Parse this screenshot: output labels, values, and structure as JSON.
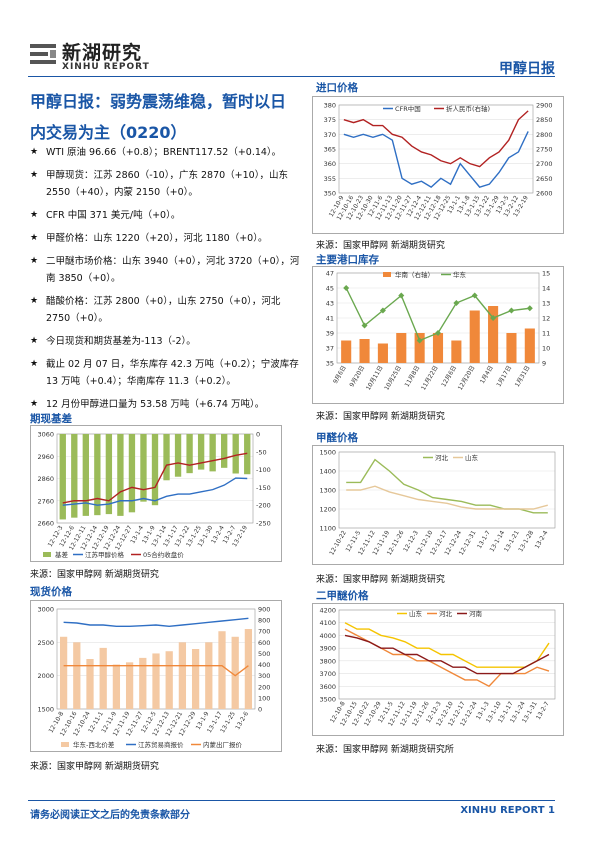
{
  "header": {
    "logo_cn": "新湖研究",
    "logo_en": "XINHU REPORT",
    "report_name": "甲醇日报"
  },
  "title": "甲醇日报：弱势震荡维稳，暂时以日内交易为主（0220）",
  "bullets": [
    "WTI 原油 96.66（+0.8）；BRENT117.52（+0.14）。",
    "甲醇现货：江苏 2860（-10），广东 2870（+10），山东 2550（+40），内蒙 2150（+0）。",
    "CFR 中国 371 美元/吨（+0）。",
    "甲醛价格：山东 1220（+20），河北 1180（+0）。",
    "二甲醚市场价格：山东 3940（+0），河北 3720（+0），河南 3850（+0）。",
    "醋酸价格：江苏 2800（+0），山东 2750（+0），河北 2750（+0）。",
    "今日现货和期货基差为-113（-2）。",
    "截止 02 月 07 日，华东库存 42.3 万吨（+0.2）；宁波库存 13 万吨（+0.4）；华南库存 11.3（+0.2）。",
    "12 月份甲醇进口量为 53.58 万吨（+6.74 万吨）。"
  ],
  "sections": {
    "import_price": "进口价格",
    "port_inventory": "主要港口库存",
    "basis": "期现基差",
    "formaldehyde": "甲醛价格",
    "spot": "现货价格",
    "dme": "二甲醚价格"
  },
  "sources": {
    "s1": "来源：国家甲醇网  新湖期货研究",
    "s2": "来源：国家甲醇网  新湖期货研究",
    "s3": "来源：国家甲醇网  新湖期货研究",
    "s4": "来源：国家甲醇网  新湖期货研究",
    "s5": "来源：国家甲醇网  新湖期货研究",
    "s6": "来源：国家甲醇网  新湖期货研究所"
  },
  "footer": {
    "disclaimer": "请务必阅读正文之后的免责条款部分",
    "brand": "XINHU REPORT",
    "page": "1"
  },
  "colors": {
    "brand_blue": "#1a56a6",
    "series_blue": "#2f6fc4",
    "series_red": "#b22222",
    "series_orange": "#f0883a",
    "series_green": "#6aa84f",
    "series_lightgreen": "#9bbb59",
    "series_yellow": "#f5c400",
    "series_darkred": "#8b1a1a"
  },
  "chart_data": [
    {
      "id": "import",
      "type": "line",
      "x": [
        "12-10-9",
        "12-10-16",
        "12-10-23",
        "12-10-30",
        "12-11-6",
        "12-11-13",
        "12-11-20",
        "12-11-27",
        "12-12-4",
        "12-12-11",
        "12-12-18",
        "12-12-25",
        "13-1-1",
        "13-1-8",
        "13-1-15",
        "13-1-22",
        "13-1-29",
        "13-2-5",
        "13-2-12",
        "13-2-19"
      ],
      "series": [
        {
          "name": "CFR中国",
          "axis": "left",
          "values": [
            370,
            369,
            370,
            369,
            370,
            368,
            355,
            353,
            354,
            352,
            355,
            353,
            360,
            356,
            352,
            353,
            357,
            362,
            364,
            371
          ]
        },
        {
          "name": "折人民币(右轴)",
          "axis": "right",
          "values": [
            2850,
            2840,
            2850,
            2830,
            2830,
            2800,
            2790,
            2760,
            2740,
            2730,
            2710,
            2700,
            2720,
            2700,
            2690,
            2720,
            2740,
            2780,
            2850,
            2880
          ]
        }
      ],
      "ylim": [
        350,
        380
      ],
      "ylim_right": [
        2600,
        2900
      ],
      "yticks": [
        350,
        355,
        360,
        365,
        370,
        375,
        380
      ],
      "yticks_right": [
        2600,
        2650,
        2700,
        2750,
        2800,
        2850,
        2900
      ]
    },
    {
      "id": "inventory",
      "type": "bar",
      "categories": [
        "9月6日",
        "9月20日",
        "10月11日",
        "10月25日",
        "11月8日",
        "11月22日",
        "12月6日",
        "12月20日",
        "1月4日",
        "1月17日",
        "1月31日"
      ],
      "series": [
        {
          "name": "华南（右轴）",
          "kind": "bar",
          "axis": "right",
          "values": [
            10.5,
            10.6,
            10.3,
            11,
            11,
            11,
            10.5,
            12.5,
            12.8,
            11,
            11.3
          ]
        },
        {
          "name": "华东",
          "kind": "line",
          "axis": "left",
          "values": [
            45,
            40,
            42,
            44,
            38,
            39,
            43,
            44,
            41,
            42,
            42.3
          ]
        }
      ],
      "ylim": [
        35,
        47
      ],
      "ylim_right": [
        9,
        15
      ],
      "yticks": [
        35,
        37,
        39,
        41,
        43,
        45,
        47
      ],
      "yticks_right": [
        9,
        10,
        11,
        12,
        13,
        14,
        15
      ]
    },
    {
      "id": "basis",
      "type": "bar",
      "categories": [
        "12-12-3",
        "12-12-6",
        "12-12-11",
        "12-12-14",
        "12-12-19",
        "12-12-24",
        "12-12-27",
        "13-1-4",
        "13-1-9",
        "13-1-14",
        "13-1-17",
        "13-1-22",
        "13-1-25",
        "13-1-30",
        "13-2-4",
        "13-2-7",
        "13-2-19"
      ],
      "series": [
        {
          "name": "基差",
          "kind": "bar",
          "axis": "right",
          "values": [
            -240,
            -235,
            -230,
            -228,
            -225,
            -230,
            -220,
            -190,
            -200,
            -130,
            -120,
            -110,
            -100,
            -105,
            -95,
            -111,
            -113
          ]
        },
        {
          "name": "江苏甲醇价格",
          "kind": "line",
          "axis": "left",
          "values": [
            2740,
            2745,
            2750,
            2740,
            2745,
            2760,
            2760,
            2770,
            2760,
            2780,
            2790,
            2790,
            2800,
            2810,
            2830,
            2862,
            2860
          ]
        },
        {
          "name": "05合约收盘价",
          "kind": "line",
          "axis": "left",
          "values": [
            2750,
            2760,
            2760,
            2770,
            2760,
            2800,
            2820,
            2810,
            2820,
            2920,
            2930,
            2920,
            2930,
            2940,
            2950,
            2964,
            2973
          ]
        }
      ],
      "ylim": [
        2660,
        3060
      ],
      "ylim_right": [
        -250,
        0
      ],
      "yticks": [
        2660,
        2760,
        2860,
        2960,
        3060
      ],
      "yticks_right": [
        -250,
        -200,
        -150,
        -100,
        -50,
        0
      ]
    },
    {
      "id": "formaldehyde",
      "type": "line",
      "x": [
        "12-10-22",
        "12-11-5",
        "12-11-12",
        "12-11-19",
        "12-11-26",
        "12-12-3",
        "12-12-10",
        "12-12-17",
        "12-12-24",
        "12-12-31",
        "13-1-7",
        "13-1-14",
        "13-1-21",
        "13-1-28",
        "13-2-4"
      ],
      "series": [
        {
          "name": "河北",
          "values": [
            1340,
            1340,
            1460,
            1400,
            1330,
            1300,
            1260,
            1250,
            1240,
            1220,
            1220,
            1200,
            1200,
            1180,
            1180
          ]
        },
        {
          "name": "山东",
          "values": [
            1300,
            1300,
            1320,
            1290,
            1270,
            1250,
            1240,
            1230,
            1210,
            1200,
            1200,
            1200,
            1200,
            1200,
            1220
          ]
        }
      ],
      "ylim": [
        1100,
        1500
      ],
      "yticks": [
        1100,
        1200,
        1300,
        1400,
        1500
      ]
    },
    {
      "id": "spot",
      "type": "bar",
      "categories": [
        "12-10-8",
        "12-10-16",
        "12-10-24",
        "12-11-1",
        "12-11-9",
        "12-11-19",
        "12-11-27",
        "12-12-5",
        "12-12-13",
        "12-12-21",
        "12-12-29",
        "13-1-9",
        "13-1-17",
        "13-1-25",
        "13-2-6"
      ],
      "series": [
        {
          "name": "华东-西北价差",
          "kind": "bar",
          "axis": "right",
          "values": [
            650,
            600,
            450,
            550,
            400,
            420,
            460,
            500,
            520,
            600,
            540,
            600,
            700,
            650,
            720
          ]
        },
        {
          "name": "江苏贸易商报价",
          "kind": "line",
          "axis": "left",
          "values": [
            2800,
            2790,
            2760,
            2760,
            2740,
            2740,
            2750,
            2760,
            2740,
            2760,
            2780,
            2800,
            2820,
            2840,
            2860
          ]
        },
        {
          "name": "内蒙出厂报价",
          "kind": "line",
          "axis": "left",
          "values": [
            2150,
            2150,
            2150,
            2150,
            2150,
            2150,
            2150,
            2150,
            2150,
            2150,
            2150,
            2150,
            2150,
            2000,
            2150
          ]
        }
      ],
      "ylim": [
        1500,
        3000
      ],
      "ylim_right": [
        0,
        900
      ],
      "yticks": [
        1500,
        2000,
        2500,
        3000
      ],
      "yticks_right": [
        0,
        100,
        200,
        300,
        400,
        500,
        600,
        700,
        800,
        900
      ]
    },
    {
      "id": "dme",
      "type": "line",
      "x": [
        "12-10-8",
        "12-10-15",
        "12-10-22",
        "12-10-29",
        "12-11-5",
        "12-11-12",
        "12-11-19",
        "12-11-26",
        "12-12-3",
        "12-12-10",
        "12-12-17",
        "12-12-24",
        "13-1-3",
        "13-1-10",
        "13-1-17",
        "13-1-24",
        "13-1-31",
        "13-2-7"
      ],
      "series": [
        {
          "name": "山东",
          "values": [
            4100,
            4050,
            4050,
            4000,
            3980,
            3950,
            3900,
            3900,
            3850,
            3850,
            3800,
            3750,
            3750,
            3750,
            3750,
            3750,
            3800,
            3940
          ]
        },
        {
          "name": "河北",
          "values": [
            4050,
            4000,
            3950,
            3900,
            3850,
            3850,
            3800,
            3800,
            3750,
            3700,
            3650,
            3650,
            3600,
            3700,
            3700,
            3700,
            3750,
            3720
          ]
        },
        {
          "name": "河南",
          "values": [
            4000,
            3980,
            3950,
            3900,
            3900,
            3850,
            3850,
            3800,
            3800,
            3750,
            3750,
            3700,
            3700,
            3700,
            3700,
            3750,
            3800,
            3850
          ]
        }
      ],
      "ylim": [
        3500,
        4200
      ],
      "yticks": [
        3500,
        3600,
        3700,
        3800,
        3900,
        4000,
        4100,
        4200
      ]
    }
  ]
}
